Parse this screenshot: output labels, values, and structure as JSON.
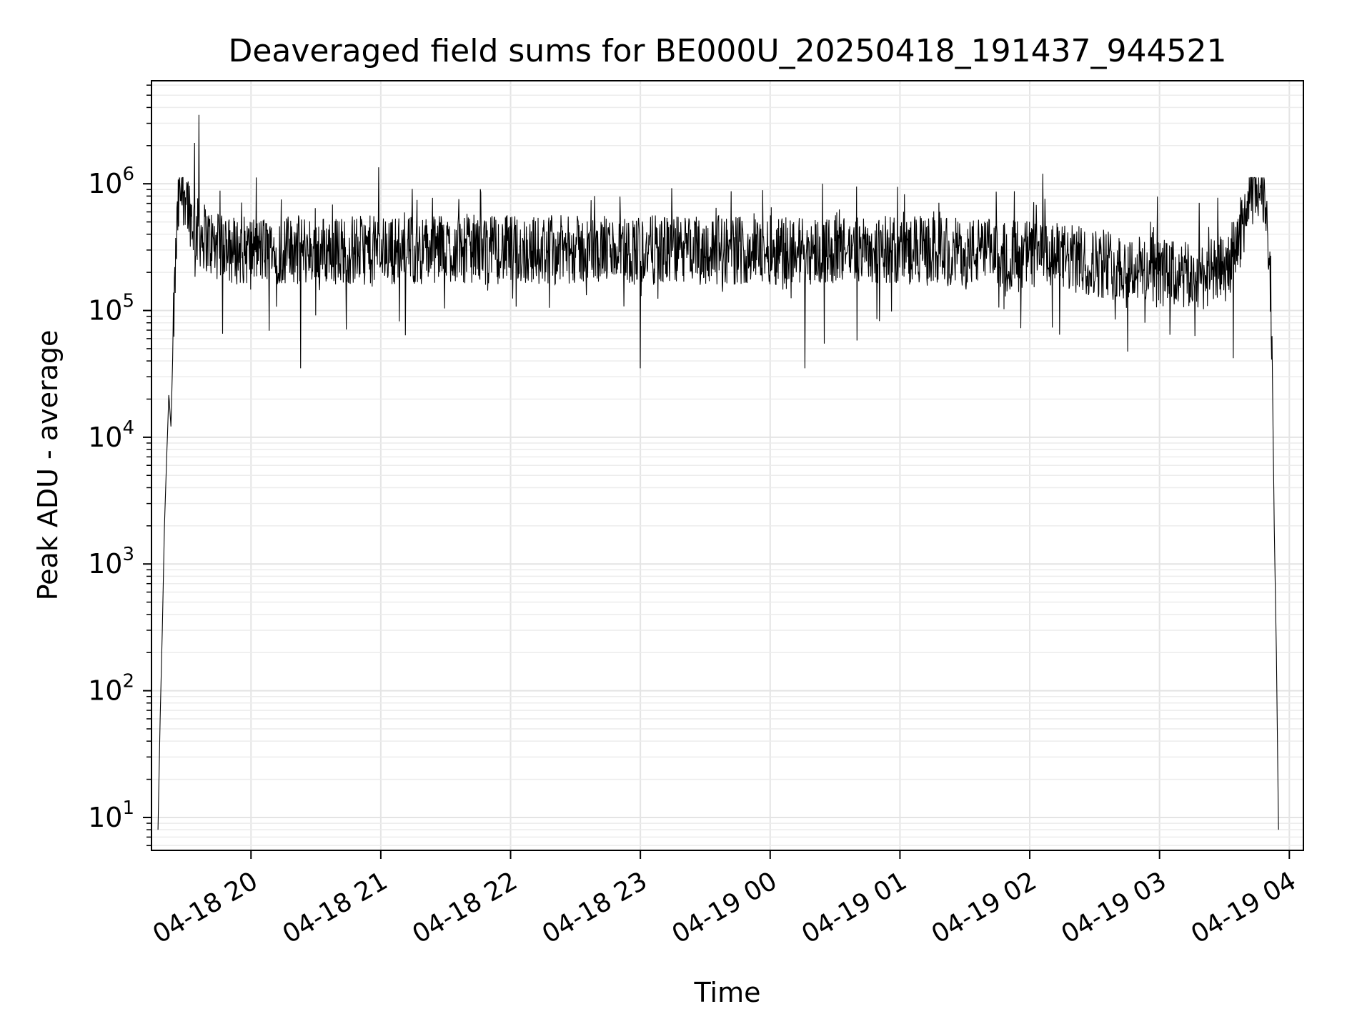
{
  "chart_data": {
    "type": "line",
    "title": "Deaveraged field sums for BE000U_20250418_191437_944521",
    "xlabel": "Time",
    "ylabel": "Peak ADU - average",
    "x_axis": {
      "kind": "time",
      "range": [
        "2025-04-18T19:14:00",
        "2025-04-19T04:06:30"
      ],
      "ticks": [
        {
          "label": "04-18 20",
          "time": "2025-04-18T20:00:00"
        },
        {
          "label": "04-18 21",
          "time": "2025-04-18T21:00:00"
        },
        {
          "label": "04-18 22",
          "time": "2025-04-18T22:00:00"
        },
        {
          "label": "04-18 23",
          "time": "2025-04-18T23:00:00"
        },
        {
          "label": "04-19 00",
          "time": "2025-04-19T00:00:00"
        },
        {
          "label": "04-19 01",
          "time": "2025-04-19T01:00:00"
        },
        {
          "label": "04-19 02",
          "time": "2025-04-19T02:00:00"
        },
        {
          "label": "04-19 03",
          "time": "2025-04-19T03:00:00"
        },
        {
          "label": "04-19 04",
          "time": "2025-04-19T04:00:00"
        }
      ]
    },
    "y_axis": {
      "scale": "log",
      "range": [
        5.5,
        6500000
      ],
      "ticks": [
        {
          "base": "10",
          "exp": "1",
          "value": 10
        },
        {
          "base": "10",
          "exp": "2",
          "value": 100
        },
        {
          "base": "10",
          "exp": "3",
          "value": 1000
        },
        {
          "base": "10",
          "exp": "4",
          "value": 10000
        },
        {
          "base": "10",
          "exp": "5",
          "value": 100000
        },
        {
          "base": "10",
          "exp": "6",
          "value": 1000000
        }
      ]
    },
    "grid": true,
    "legend": "none",
    "line_color": "#000000",
    "series": [
      {
        "x": [
          "2025-04-18T19:17:00",
          "2025-04-18T19:18:00",
          "2025-04-18T19:19:00",
          "2025-04-18T19:20:00",
          "2025-04-18T19:22:00",
          "2025-04-18T19:23:00",
          "2025-04-18T19:24:00",
          "2025-04-18T19:25:00",
          "2025-04-18T19:26:00",
          "2025-04-18T19:27:00",
          "2025-04-18T19:28:00",
          "2025-04-18T19:29:00",
          "2025-04-18T19:30:00",
          "2025-04-18T19:31:00",
          "2025-04-18T19:33:00",
          "2025-04-18T19:35:00",
          "2025-04-18T19:37:00",
          "2025-04-18T19:39:00",
          "2025-04-18T19:41:00",
          "2025-04-18T19:43:00",
          "2025-04-18T19:45:00",
          "2025-04-18T19:48:00",
          "2025-04-18T19:51:00",
          "2025-04-18T19:55:00",
          "2025-04-18T20:00:00",
          "2025-04-18T20:10:00",
          "2025-04-18T20:15:00",
          "2025-04-18T20:30:00",
          "2025-04-18T20:45:00",
          "2025-04-18T21:00:00",
          "2025-04-18T21:20:00",
          "2025-04-18T21:40:00",
          "2025-04-18T22:00:00",
          "2025-04-18T22:30:00",
          "2025-04-18T23:00:00",
          "2025-04-18T23:30:00",
          "2025-04-19T00:00:00",
          "2025-04-19T00:30:00",
          "2025-04-19T01:00:00",
          "2025-04-19T01:30:00",
          "2025-04-19T02:00:00",
          "2025-04-19T02:30:00",
          "2025-04-19T03:00:00",
          "2025-04-19T03:15:00",
          "2025-04-19T03:25:00",
          "2025-04-19T03:30:00",
          "2025-04-19T03:35:00",
          "2025-04-19T03:40:00",
          "2025-04-19T03:43:00",
          "2025-04-19T03:46:00",
          "2025-04-19T03:48:00",
          "2025-04-19T03:50:00",
          "2025-04-19T03:52:00",
          "2025-04-19T03:53:00",
          "2025-04-19T03:54:00",
          "2025-04-19T03:55:00"
        ],
        "y": [
          8,
          60,
          300,
          2000,
          22000,
          12000,
          60000,
          200000,
          500000,
          800000,
          900000,
          850000,
          900000,
          700000,
          500000,
          420000,
          400000,
          380000,
          350000,
          320000,
          310000,
          300000,
          300000,
          300000,
          300000,
          300000,
          300000,
          300000,
          300000,
          300000,
          300000,
          310000,
          300000,
          300000,
          300000,
          300000,
          300000,
          300000,
          300000,
          290000,
          280000,
          240000,
          200000,
          180000,
          200000,
          210000,
          300000,
          600000,
          850000,
          950000,
          900000,
          500000,
          60000,
          2000,
          200,
          8
        ],
        "spikes": [
          {
            "x": "2025-04-18T19:36:00",
            "y": 3500000
          },
          {
            "x": "2025-04-18T19:34:00",
            "y": 2100000
          },
          {
            "x": "2025-04-18T20:59:00",
            "y": 1350000
          },
          {
            "x": "2025-04-19T00:40:00",
            "y": 950000
          },
          {
            "x": "2025-04-19T02:06:00",
            "y": 1200000
          },
          {
            "x": "2025-04-18T23:00:00",
            "y": 35000
          },
          {
            "x": "2025-04-19T00:16:00",
            "y": 35000
          },
          {
            "x": "2025-04-18T20:23:00",
            "y": 35000
          },
          {
            "x": "2025-04-19T03:34:00",
            "y": 42000
          }
        ],
        "noise_band": {
          "low": 90000,
          "high": 700000
        }
      }
    ]
  }
}
